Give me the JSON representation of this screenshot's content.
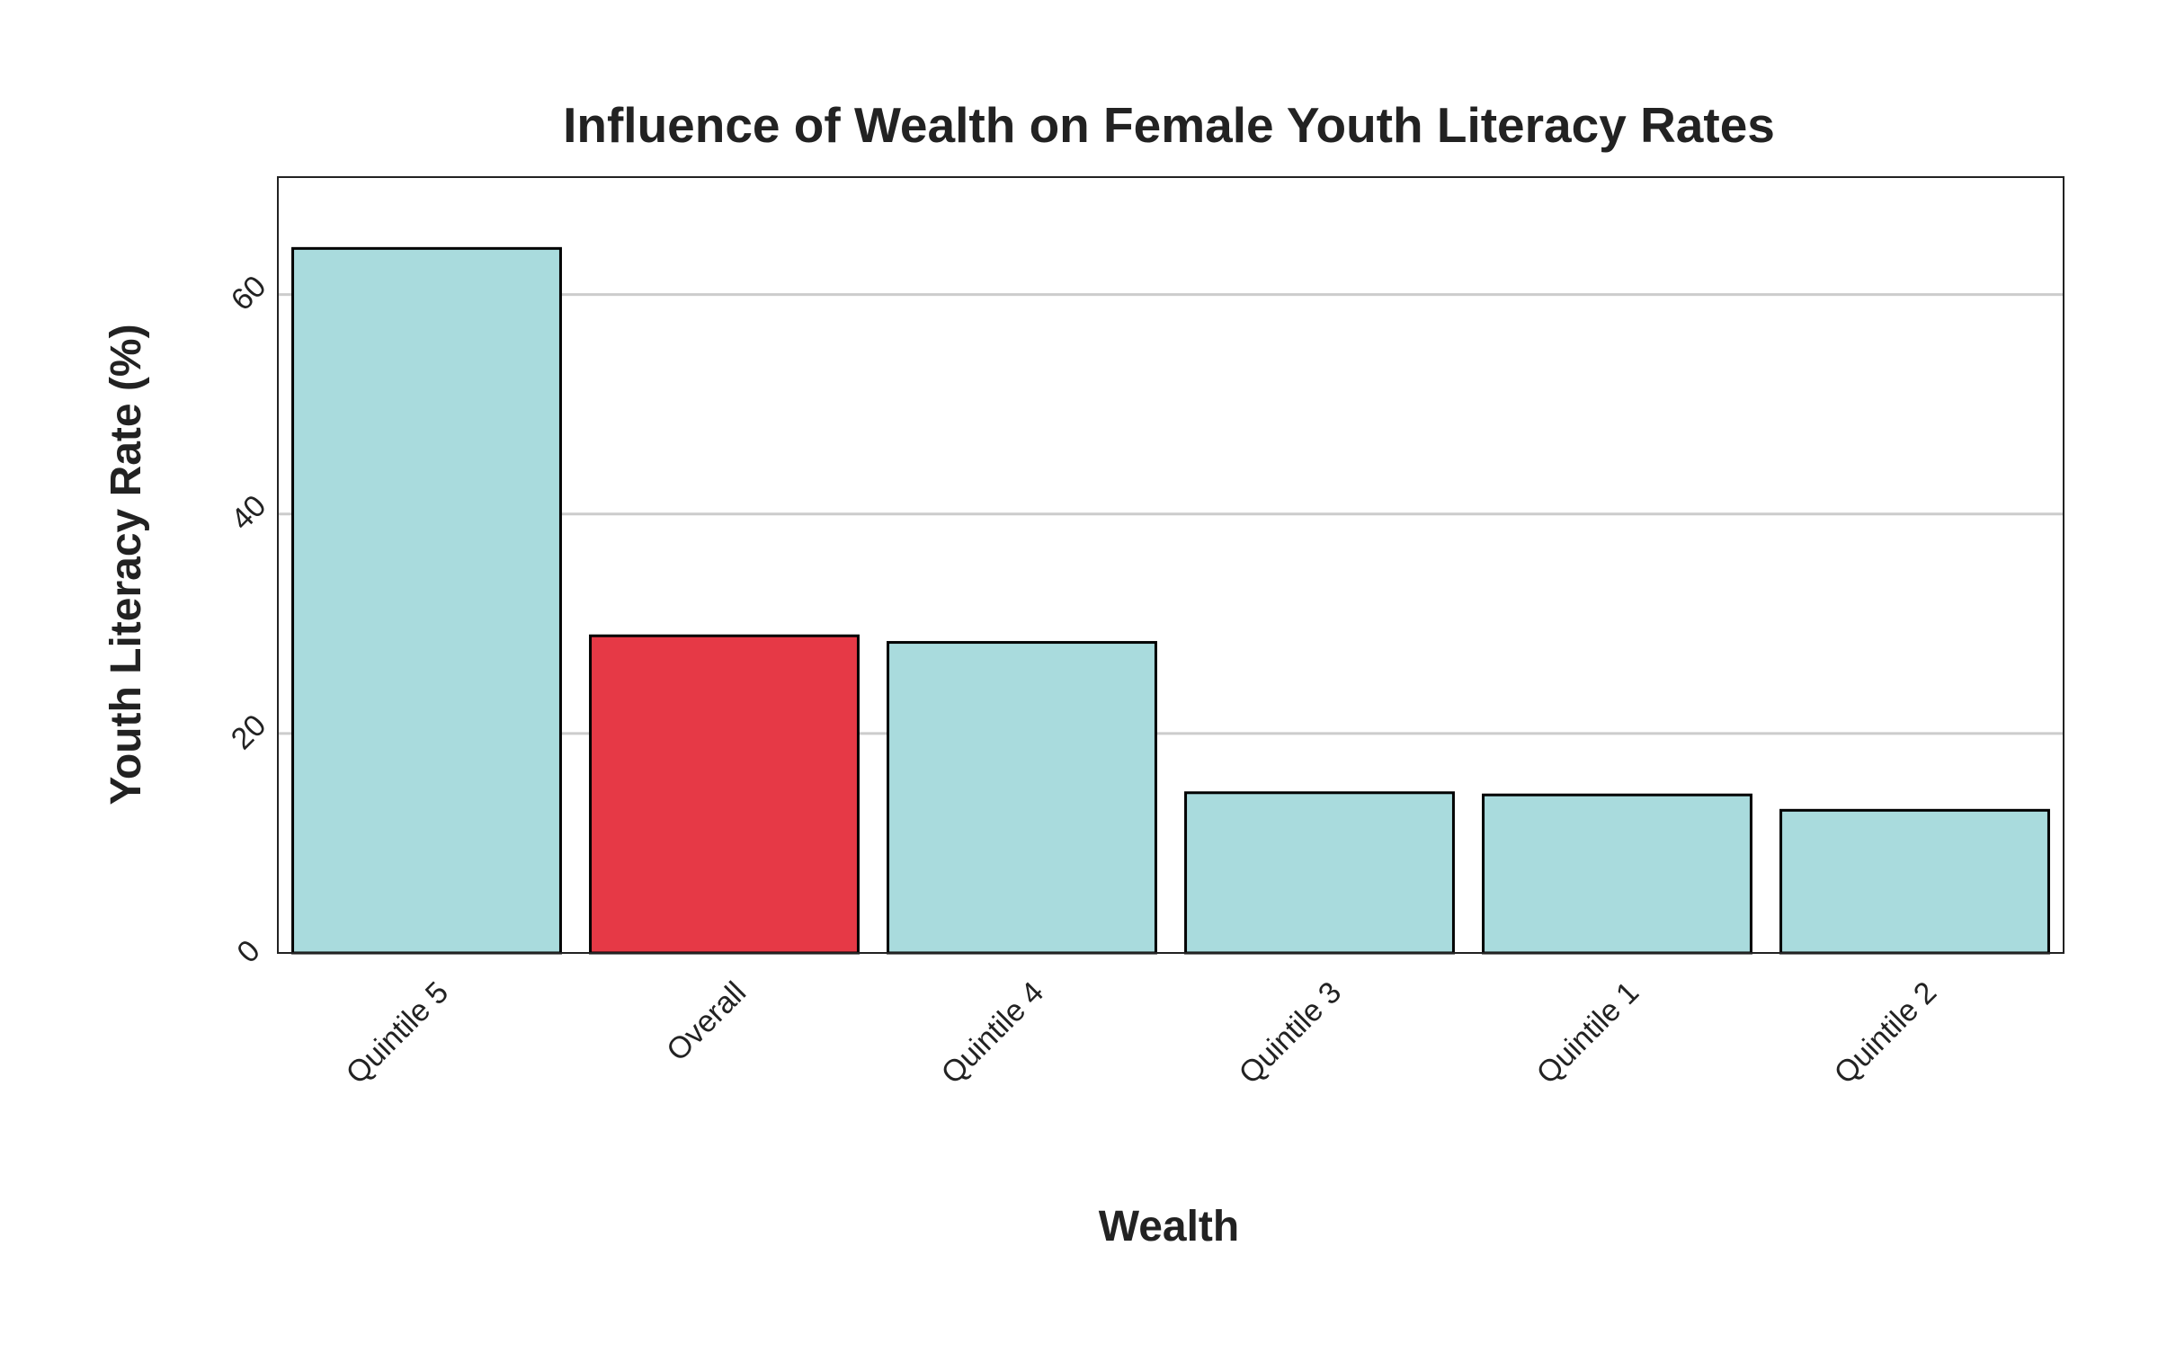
{
  "chart_data": {
    "type": "bar",
    "title": "Influence of Wealth on Female Youth Literacy Rates",
    "xlabel": "Wealth",
    "ylabel": "Youth Literacy Rate (%)",
    "categories": [
      "Quintile 5",
      "Overall",
      "Quintile 4",
      "Quintile 3",
      "Quintile 1",
      "Quintile 2"
    ],
    "values": [
      64.2,
      28.9,
      28.3,
      14.6,
      14.4,
      13.0
    ],
    "highlight": [
      "Overall"
    ],
    "ylim": [
      0,
      70.7
    ],
    "yticks": [
      0,
      20,
      40,
      60
    ],
    "grid": "horizontal",
    "legend": "none",
    "colors": {
      "bar": "#a9dbdd",
      "highlight": "#e63946",
      "bar_edge": "#000000",
      "grid": "#cccccc",
      "frame": "#222222"
    }
  }
}
